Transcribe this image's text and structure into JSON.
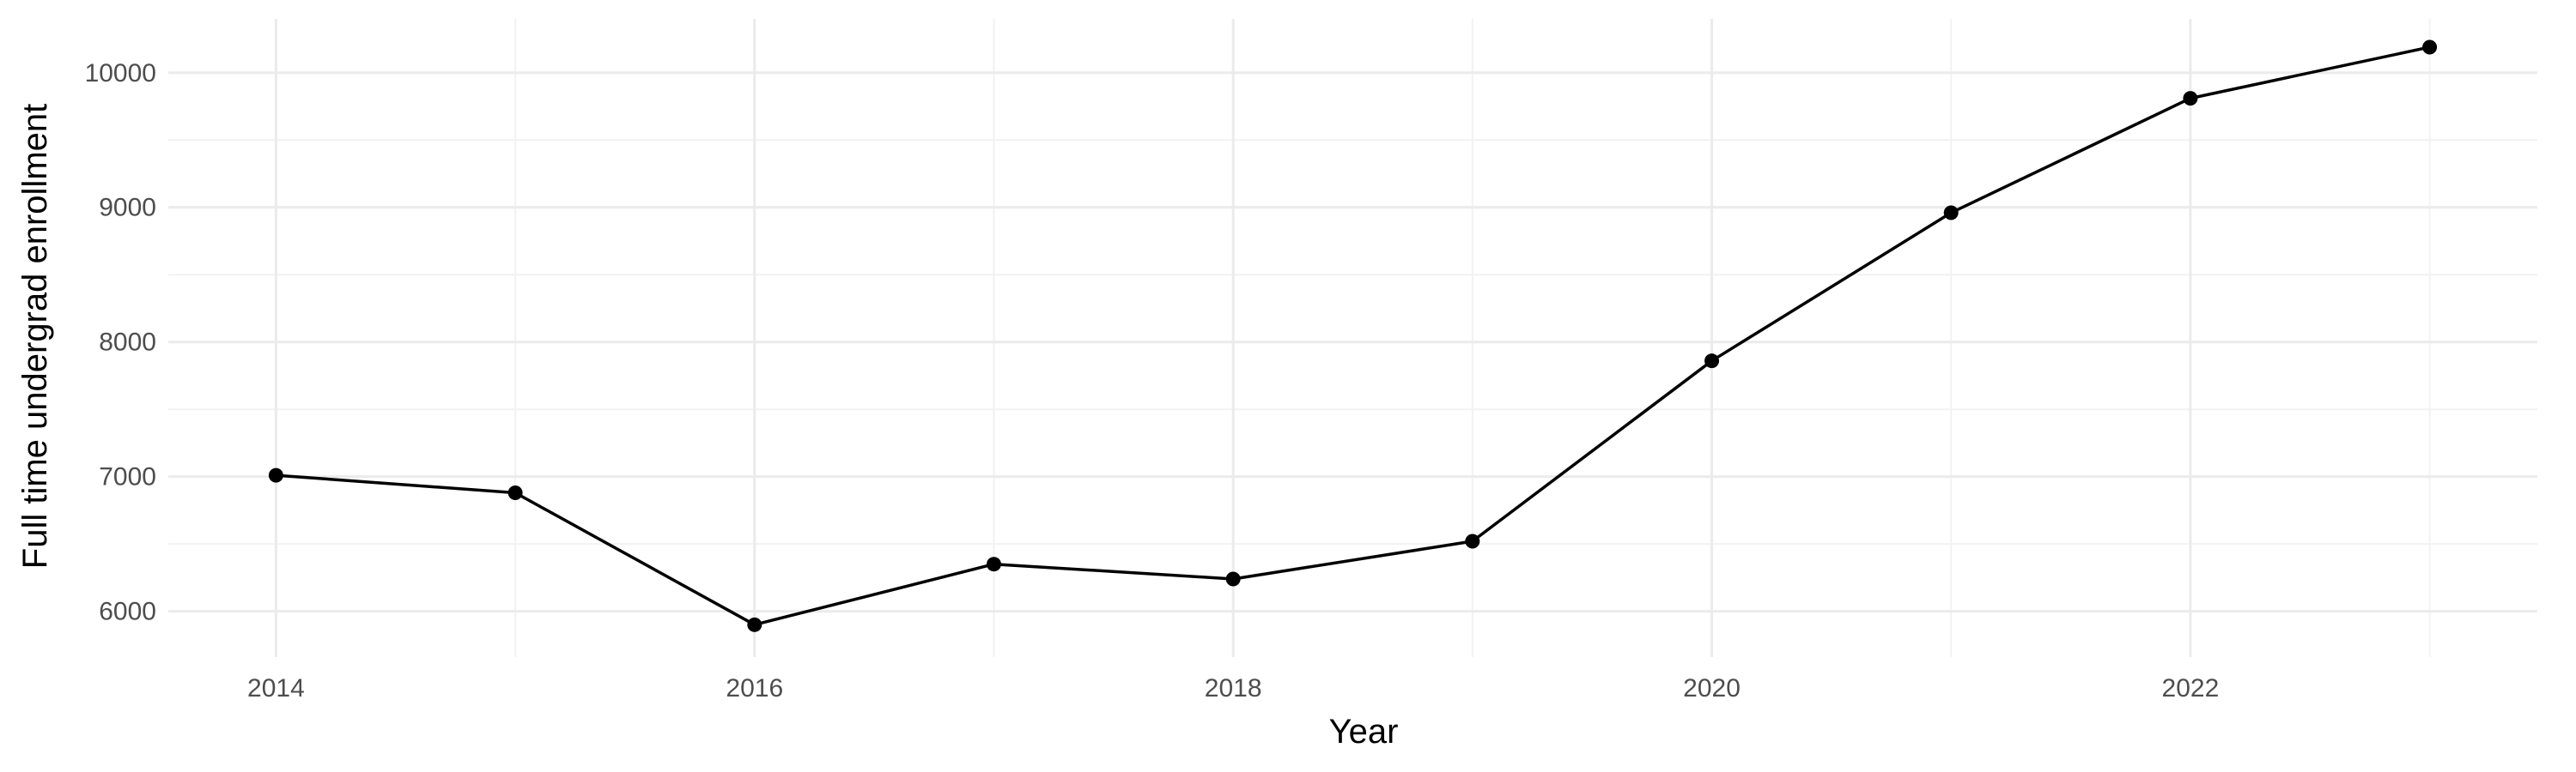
{
  "chart_data": {
    "type": "line",
    "title": "",
    "xlabel": "Year",
    "ylabel": "Full time undergrad enrollment",
    "x": [
      2014,
      2015,
      2016,
      2017,
      2018,
      2019,
      2020,
      2021,
      2022,
      2023
    ],
    "series": [
      {
        "values": [
          7010,
          6880,
          5900,
          6350,
          6240,
          6520,
          7860,
          8960,
          9810,
          10190
        ]
      }
    ],
    "xlim": [
      2013.55,
      2023.45
    ],
    "ylim": [
      5660,
      10400
    ],
    "x_ticks": [
      2014,
      2016,
      2018,
      2020,
      2022
    ],
    "x_tick_labels": [
      "2014",
      "2016",
      "2018",
      "2020",
      "2022"
    ],
    "y_ticks": [
      6000,
      7000,
      8000,
      9000,
      10000
    ],
    "y_tick_labels": [
      "6000",
      "7000",
      "8000",
      "9000",
      "10000"
    ],
    "grid": true,
    "legend": "none",
    "colors": {
      "line": "#000000",
      "point": "#000000",
      "grid_major": "#ebebeb",
      "grid_minor": "#f2f2f2",
      "tick_text": "#4d4d4d"
    }
  }
}
